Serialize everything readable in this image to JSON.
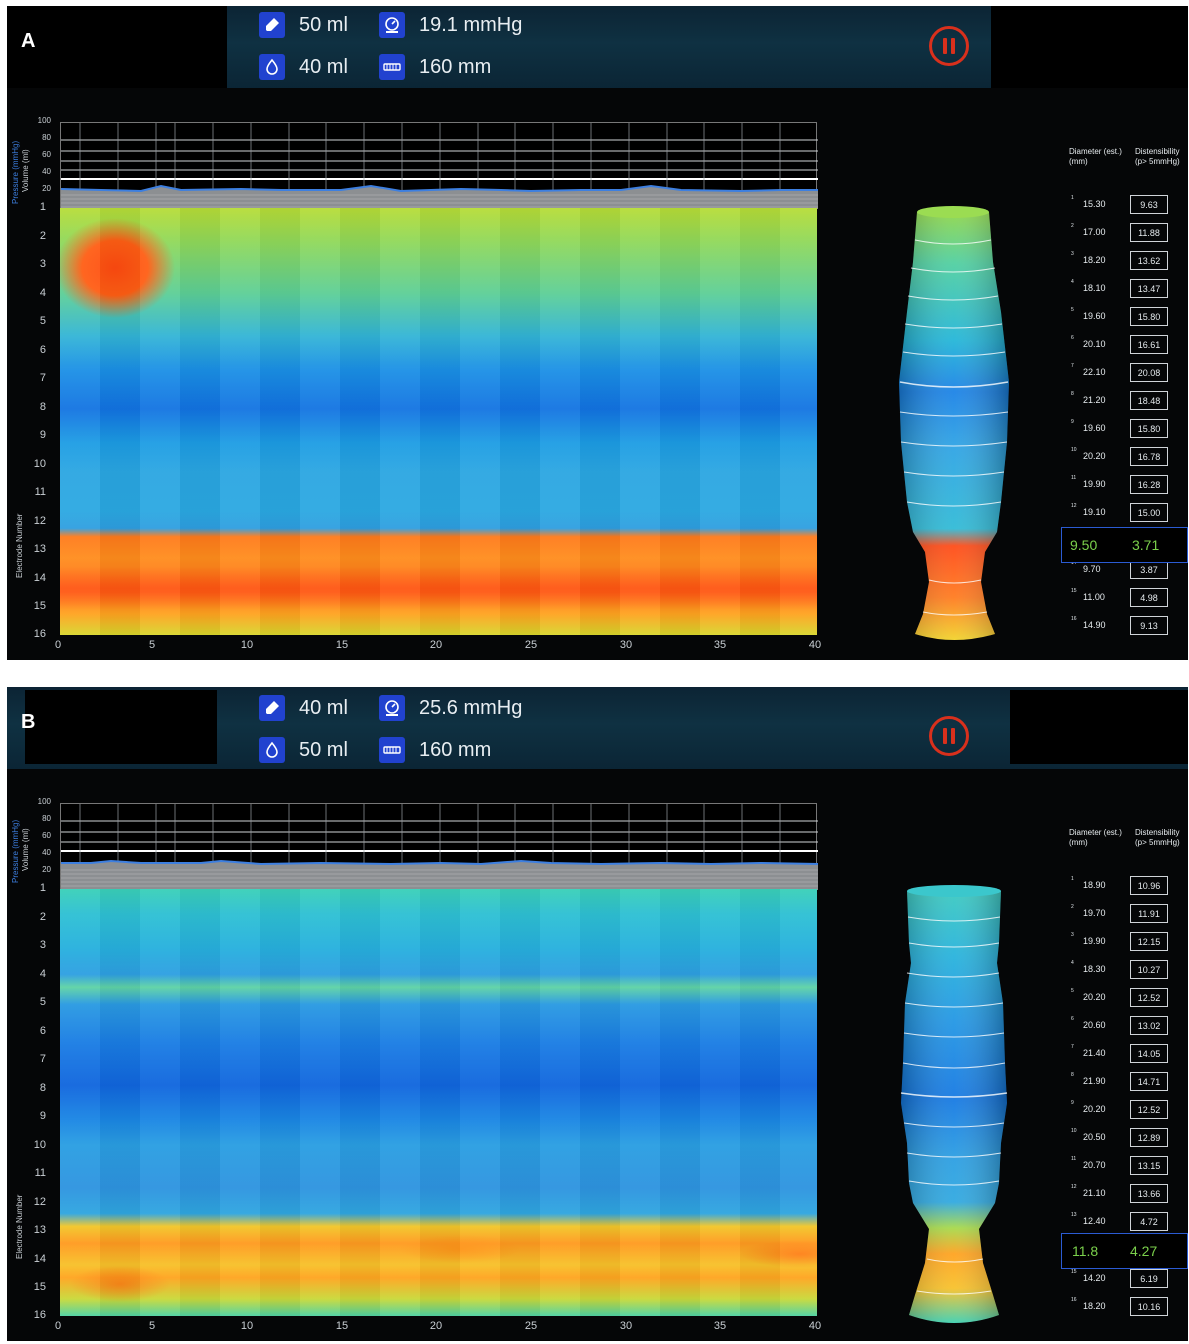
{
  "panel_a": {
    "label": "A",
    "syringe": "50 ml",
    "pressure": "19.1 mmHg",
    "volume": "40 ml",
    "length": "160 mm",
    "selected": {
      "diameter": "9.50",
      "distensibility": "3.71"
    },
    "rows": [
      {
        "idx": "1",
        "d": "15.30",
        "dist": "9.63"
      },
      {
        "idx": "2",
        "d": "17.00",
        "dist": "11.88"
      },
      {
        "idx": "3",
        "d": "18.20",
        "dist": "13.62"
      },
      {
        "idx": "4",
        "d": "18.10",
        "dist": "13.47"
      },
      {
        "idx": "5",
        "d": "19.60",
        "dist": "15.80"
      },
      {
        "idx": "6",
        "d": "20.10",
        "dist": "16.61"
      },
      {
        "idx": "7",
        "d": "22.10",
        "dist": "20.08"
      },
      {
        "idx": "8",
        "d": "21.20",
        "dist": "18.48"
      },
      {
        "idx": "9",
        "d": "19.60",
        "dist": "15.80"
      },
      {
        "idx": "10",
        "d": "20.20",
        "dist": "16.78"
      },
      {
        "idx": "11",
        "d": "19.90",
        "dist": "16.28"
      },
      {
        "idx": "12",
        "d": "19.10",
        "dist": "15.00"
      },
      {
        "idx": "14",
        "d": "9.70",
        "dist": "3.87"
      },
      {
        "idx": "15",
        "d": "11.00",
        "dist": "4.98"
      },
      {
        "idx": "16",
        "d": "14.90",
        "dist": "9.13"
      }
    ]
  },
  "panel_b": {
    "label": "B",
    "syringe": "40 ml",
    "pressure": "25.6 mmHg",
    "volume": "50 ml",
    "length": "160 mm",
    "selected": {
      "diameter": "11.8",
      "distensibility": "4.27"
    },
    "rows": [
      {
        "idx": "1",
        "d": "18.90",
        "dist": "10.96"
      },
      {
        "idx": "2",
        "d": "19.70",
        "dist": "11.91"
      },
      {
        "idx": "3",
        "d": "19.90",
        "dist": "12.15"
      },
      {
        "idx": "4",
        "d": "18.30",
        "dist": "10.27"
      },
      {
        "idx": "5",
        "d": "20.20",
        "dist": "12.52"
      },
      {
        "idx": "6",
        "d": "20.60",
        "dist": "13.02"
      },
      {
        "idx": "7",
        "d": "21.40",
        "dist": "14.05"
      },
      {
        "idx": "8",
        "d": "21.90",
        "dist": "14.71"
      },
      {
        "idx": "9",
        "d": "20.20",
        "dist": "12.52"
      },
      {
        "idx": "10",
        "d": "20.50",
        "dist": "12.89"
      },
      {
        "idx": "11",
        "d": "20.70",
        "dist": "13.15"
      },
      {
        "idx": "12",
        "d": "21.10",
        "dist": "13.66"
      },
      {
        "idx": "13",
        "d": "12.40",
        "dist": "4.72"
      },
      {
        "idx": "15",
        "d": "14.20",
        "dist": "6.19"
      },
      {
        "idx": "16",
        "d": "18.20",
        "dist": "10.16"
      }
    ]
  },
  "labels": {
    "table_header_diameter": "Diameter (est.)",
    "table_header_diameter_unit": "(mm)",
    "table_header_distensibility": "Distensibility",
    "table_header_distensibility_unit": "(p> 5mmHg)",
    "y_axis_title": "Electrode Number",
    "top_axis_pressure": "Pressure (mmHg)",
    "top_axis_volume": "Volume (ml)",
    "electrode_ticks": [
      "1",
      "2",
      "3",
      "4",
      "5",
      "6",
      "7",
      "8",
      "9",
      "10",
      "11",
      "12",
      "13",
      "14",
      "15",
      "16"
    ],
    "x_ticks": [
      "0",
      "5",
      "10",
      "15",
      "20",
      "25",
      "30",
      "35",
      "40"
    ],
    "top_ticks": [
      "100",
      "80",
      "60",
      "40",
      "20"
    ]
  },
  "colors": {
    "accent_blue": "#2142cf",
    "pause_red": "#d9301c",
    "highlight_green": "#7bd14c",
    "pressure_trace": "#3d7fe0"
  }
}
